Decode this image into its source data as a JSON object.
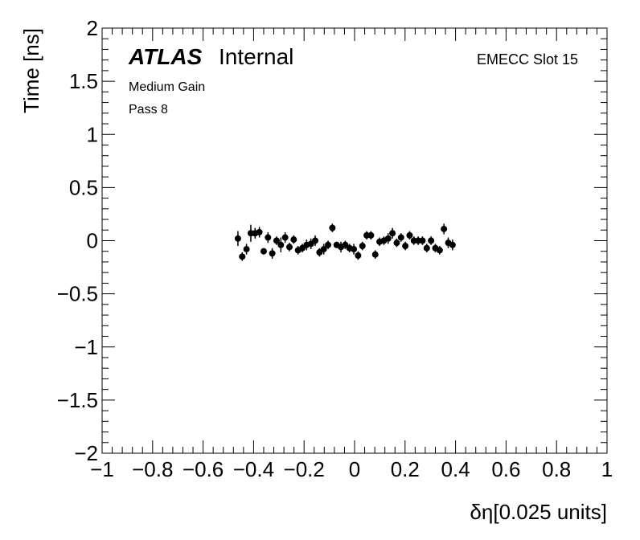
{
  "chart_data": {
    "type": "scatter",
    "xlabel": "δη[0.025 units]",
    "ylabel": "Time [ns]",
    "xlim": [
      -1,
      1
    ],
    "ylim": [
      -2,
      2
    ],
    "x_ticks": [
      "−1",
      "−0.8",
      "−0.6",
      "−0.4",
      "−0.2",
      "0",
      "0.2",
      "0.4",
      "0.6",
      "0.8",
      "1"
    ],
    "y_ticks": [
      "−2",
      "−1.5",
      "−1",
      "−0.5",
      "0",
      "0.5",
      "1",
      "1.5",
      "2"
    ],
    "grid": false,
    "annotations": {
      "atlas": "ATLAS",
      "internal": "Internal",
      "gain": "Medium Gain",
      "pass": "Pass 8",
      "slot": "EMECC Slot 15"
    },
    "series": [
      {
        "marker_color": "#000000",
        "points": [
          {
            "x": -0.462,
            "y": 0.02,
            "err": 0.07
          },
          {
            "x": -0.445,
            "y": -0.15,
            "err": 0.04
          },
          {
            "x": -0.428,
            "y": -0.08,
            "err": 0.05
          },
          {
            "x": -0.411,
            "y": 0.07,
            "err": 0.08
          },
          {
            "x": -0.394,
            "y": 0.07,
            "err": 0.05
          },
          {
            "x": -0.377,
            "y": 0.08,
            "err": 0.05
          },
          {
            "x": -0.36,
            "y": -0.1,
            "err": 0.03
          },
          {
            "x": -0.343,
            "y": 0.03,
            "err": 0.05
          },
          {
            "x": -0.326,
            "y": -0.12,
            "err": 0.05
          },
          {
            "x": -0.309,
            "y": 0.0,
            "err": 0.04
          },
          {
            "x": -0.292,
            "y": -0.04,
            "err": 0.07
          },
          {
            "x": -0.275,
            "y": 0.03,
            "err": 0.05
          },
          {
            "x": -0.258,
            "y": -0.06,
            "err": 0.04
          },
          {
            "x": -0.241,
            "y": 0.01,
            "err": 0.04
          },
          {
            "x": -0.224,
            "y": -0.09,
            "err": 0.04
          },
          {
            "x": -0.207,
            "y": -0.07,
            "err": 0.04
          },
          {
            "x": -0.19,
            "y": -0.04,
            "err": 0.05
          },
          {
            "x": -0.173,
            "y": -0.03,
            "err": 0.05
          },
          {
            "x": -0.156,
            "y": 0.0,
            "err": 0.05
          },
          {
            "x": -0.139,
            "y": -0.11,
            "err": 0.04
          },
          {
            "x": -0.122,
            "y": -0.08,
            "err": 0.05
          },
          {
            "x": -0.105,
            "y": -0.04,
            "err": 0.04
          },
          {
            "x": -0.088,
            "y": 0.12,
            "err": 0.04
          },
          {
            "x": -0.071,
            "y": -0.04,
            "err": 0.03
          },
          {
            "x": -0.054,
            "y": -0.06,
            "err": 0.05
          },
          {
            "x": -0.037,
            "y": -0.04,
            "err": 0.04
          },
          {
            "x": -0.02,
            "y": -0.07,
            "err": 0.04
          },
          {
            "x": -0.003,
            "y": -0.08,
            "err": 0.05
          },
          {
            "x": 0.014,
            "y": -0.14,
            "err": 0.04
          },
          {
            "x": 0.031,
            "y": -0.05,
            "err": 0.04
          },
          {
            "x": 0.048,
            "y": 0.05,
            "err": 0.04
          },
          {
            "x": 0.065,
            "y": 0.05,
            "err": 0.04
          },
          {
            "x": 0.082,
            "y": -0.13,
            "err": 0.04
          },
          {
            "x": 0.099,
            "y": -0.01,
            "err": 0.04
          },
          {
            "x": 0.116,
            "y": 0.0,
            "err": 0.04
          },
          {
            "x": 0.133,
            "y": 0.02,
            "err": 0.05
          },
          {
            "x": 0.15,
            "y": 0.07,
            "err": 0.05
          },
          {
            "x": 0.167,
            "y": -0.02,
            "err": 0.04
          },
          {
            "x": 0.184,
            "y": 0.03,
            "err": 0.04
          },
          {
            "x": 0.201,
            "y": -0.05,
            "err": 0.04
          },
          {
            "x": 0.218,
            "y": 0.05,
            "err": 0.04
          },
          {
            "x": 0.235,
            "y": 0.0,
            "err": 0.04
          },
          {
            "x": 0.252,
            "y": 0.0,
            "err": 0.04
          },
          {
            "x": 0.269,
            "y": 0.0,
            "err": 0.04
          },
          {
            "x": 0.286,
            "y": -0.07,
            "err": 0.04
          },
          {
            "x": 0.303,
            "y": 0.0,
            "err": 0.04
          },
          {
            "x": 0.32,
            "y": -0.07,
            "err": 0.04
          },
          {
            "x": 0.337,
            "y": -0.09,
            "err": 0.04
          },
          {
            "x": 0.354,
            "y": 0.11,
            "err": 0.05
          },
          {
            "x": 0.371,
            "y": -0.02,
            "err": 0.05
          },
          {
            "x": 0.388,
            "y": -0.04,
            "err": 0.05
          }
        ]
      }
    ]
  }
}
